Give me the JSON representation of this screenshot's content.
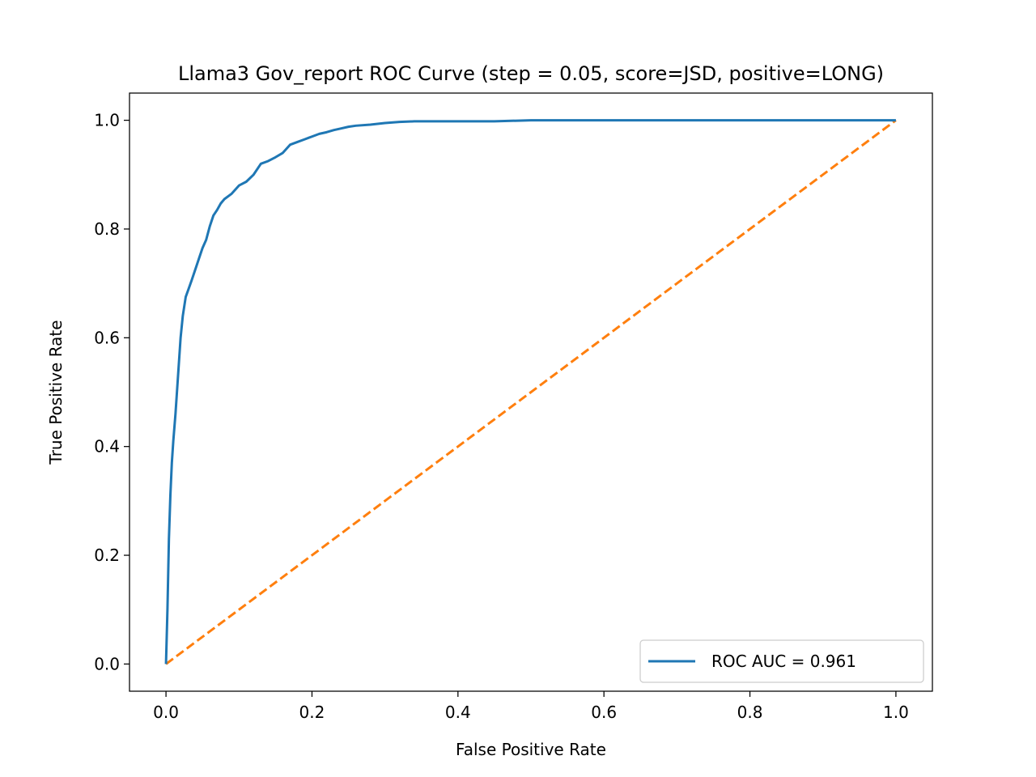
{
  "chart_data": {
    "type": "line",
    "title": "Llama3 Gov_report ROC Curve (step = 0.05, score=JSD, positive=LONG)",
    "xlabel": "False Positive Rate",
    "ylabel": "True Positive Rate",
    "xlim": [
      -0.05,
      1.05
    ],
    "ylim": [
      -0.05,
      1.05
    ],
    "xticks": [
      0.0,
      0.2,
      0.4,
      0.6,
      0.8,
      1.0
    ],
    "xtick_labels": [
      "0.0",
      "0.2",
      "0.4",
      "0.6",
      "0.8",
      "1.0"
    ],
    "yticks": [
      0.0,
      0.2,
      0.4,
      0.6,
      0.8,
      1.0
    ],
    "ytick_labels": [
      "0.0",
      "0.2",
      "0.4",
      "0.6",
      "0.8",
      "1.0"
    ],
    "grid": false,
    "legend_position": "lower-right",
    "series": [
      {
        "name": "ROC AUC = 0.961",
        "color": "#1f77b4",
        "style": "solid",
        "in_legend": true,
        "x": [
          0.0,
          0.002,
          0.004,
          0.006,
          0.008,
          0.01,
          0.013,
          0.016,
          0.02,
          0.023,
          0.027,
          0.031,
          0.035,
          0.04,
          0.045,
          0.05,
          0.055,
          0.06,
          0.065,
          0.07,
          0.075,
          0.08,
          0.09,
          0.1,
          0.11,
          0.12,
          0.13,
          0.14,
          0.15,
          0.16,
          0.17,
          0.18,
          0.19,
          0.2,
          0.21,
          0.22,
          0.23,
          0.24,
          0.25,
          0.26,
          0.28,
          0.3,
          0.32,
          0.34,
          0.36,
          0.38,
          0.4,
          0.45,
          0.5,
          0.6,
          0.7,
          0.8,
          0.9,
          1.0
        ],
        "y": [
          0.0,
          0.1,
          0.23,
          0.31,
          0.37,
          0.41,
          0.46,
          0.52,
          0.6,
          0.64,
          0.675,
          0.69,
          0.705,
          0.725,
          0.745,
          0.765,
          0.78,
          0.805,
          0.825,
          0.835,
          0.847,
          0.855,
          0.865,
          0.88,
          0.887,
          0.9,
          0.92,
          0.925,
          0.932,
          0.94,
          0.955,
          0.96,
          0.965,
          0.97,
          0.975,
          0.978,
          0.982,
          0.985,
          0.988,
          0.99,
          0.992,
          0.995,
          0.997,
          0.998,
          0.998,
          0.998,
          0.998,
          0.998,
          1.0,
          1.0,
          1.0,
          1.0,
          1.0,
          1.0
        ]
      },
      {
        "color": "#ff7f0e",
        "style": "dashed",
        "in_legend": false,
        "x": [
          0.0,
          1.0
        ],
        "y": [
          0.0,
          1.0
        ]
      }
    ]
  }
}
